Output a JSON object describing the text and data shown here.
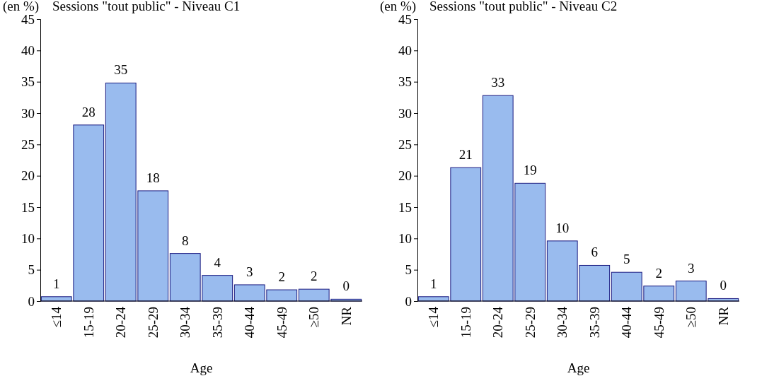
{
  "chart_data": [
    {
      "type": "bar",
      "title": "Sessions \"tout public\" - Niveau C1",
      "ylabel": "(en %)",
      "xlabel": "Age",
      "categories": [
        "≤14",
        "15-19",
        "20-24",
        "25-29",
        "30-34",
        "35-39",
        "40-44",
        "45-49",
        "≥50",
        "NR"
      ],
      "values": [
        0.7,
        28.1,
        34.8,
        17.6,
        7.6,
        4.1,
        2.6,
        1.8,
        1.9,
        0.3
      ],
      "value_labels": [
        "1",
        "28",
        "35",
        "18",
        "8",
        "4",
        "3",
        "2",
        "2",
        "0"
      ],
      "color": "#99bbee",
      "ylim": [
        0,
        45
      ],
      "yticks": [
        0,
        5,
        10,
        15,
        20,
        25,
        30,
        35,
        40,
        45
      ],
      "grid": false
    },
    {
      "type": "bar",
      "title": "Sessions \"tout public\" - Niveau C2",
      "ylabel": "(en %)",
      "xlabel": "Age",
      "categories": [
        "≤14",
        "15-19",
        "20-24",
        "25-29",
        "30-34",
        "35-39",
        "40-44",
        "45-49",
        "≥50",
        "NR"
      ],
      "values": [
        0.7,
        21.3,
        32.8,
        18.8,
        9.6,
        5.7,
        4.6,
        2.4,
        3.2,
        0.4
      ],
      "value_labels": [
        "1",
        "21",
        "33",
        "19",
        "10",
        "6",
        "5",
        "2",
        "3",
        "0"
      ],
      "color": "#99bbee",
      "ylim": [
        0,
        45
      ],
      "yticks": [
        0,
        5,
        10,
        15,
        20,
        25,
        30,
        35,
        40,
        45
      ],
      "grid": false
    }
  ]
}
